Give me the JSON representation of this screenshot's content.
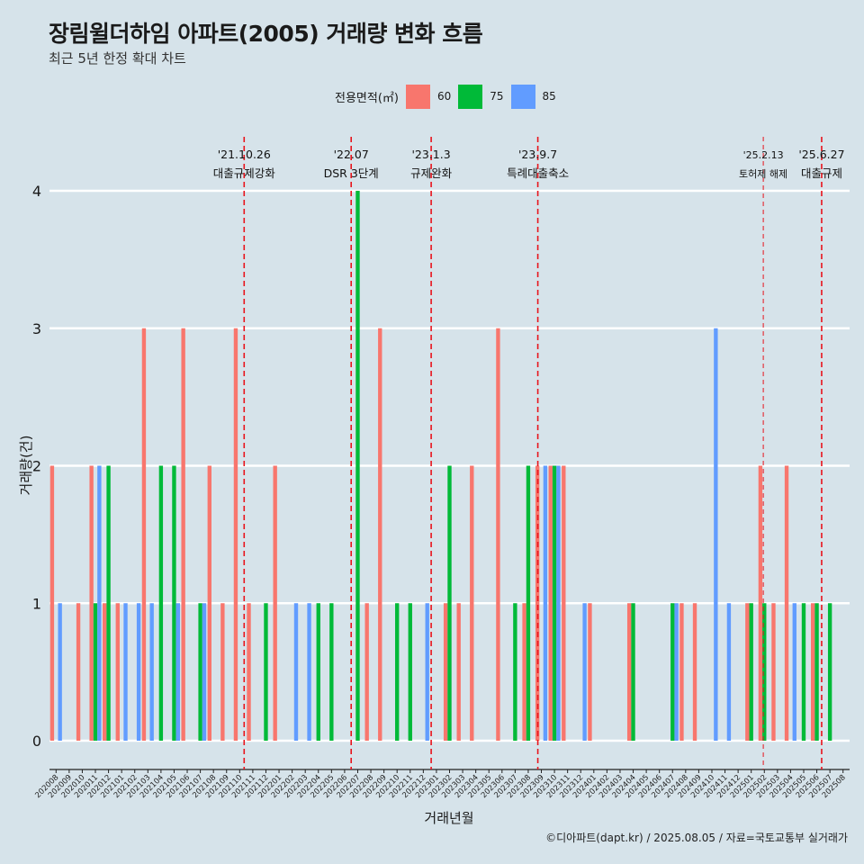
{
  "header": {
    "title": "장림윌더하임 아파트(2005) 거래량 변화 흐름",
    "subtitle": "최근 5년 한정 확대 차트"
  },
  "legend": {
    "title": "전용면적(㎡)",
    "items": [
      {
        "label": "60",
        "color": "#F8766D"
      },
      {
        "label": "75",
        "color": "#00BA38"
      },
      {
        "label": "85",
        "color": "#619CFF"
      }
    ]
  },
  "caption": "©디아파트(dapt.kr) / 2025.08.05 / 자료=국토교통부 실거래가",
  "chart_data": {
    "type": "bar",
    "xlabel": "거래년월",
    "ylabel": "거래량(건)",
    "ylim": [
      0,
      4
    ],
    "yticks": [
      0,
      1,
      2,
      3,
      4
    ],
    "grid": "horizontal",
    "legend_position": "top",
    "categories": [
      "202008",
      "202009",
      "202010",
      "202011",
      "202012",
      "202101",
      "202102",
      "202103",
      "202104",
      "202105",
      "202106",
      "202107",
      "202108",
      "202109",
      "202110",
      "202111",
      "202112",
      "202201",
      "202202",
      "202203",
      "202204",
      "202205",
      "202206",
      "202207",
      "202208",
      "202209",
      "202210",
      "202211",
      "202212",
      "202301",
      "202302",
      "202303",
      "202304",
      "202305",
      "202306",
      "202307",
      "202308",
      "202309",
      "202310",
      "202311",
      "202312",
      "202401",
      "202402",
      "202403",
      "202404",
      "202405",
      "202406",
      "202407",
      "202408",
      "202409",
      "202410",
      "202411",
      "202412",
      "202501",
      "202502",
      "202503",
      "202504",
      "202505",
      "202506",
      "202507",
      "202508"
    ],
    "series": [
      {
        "name": "60",
        "color": "#F8766D",
        "values": [
          2,
          0,
          1,
          2,
          1,
          1,
          0,
          3,
          0,
          0,
          3,
          0,
          2,
          1,
          3,
          1,
          0,
          2,
          0,
          0,
          0,
          0,
          0,
          0,
          1,
          3,
          0,
          0,
          0,
          0,
          1,
          1,
          2,
          0,
          3,
          0,
          1,
          2,
          2,
          2,
          0,
          1,
          0,
          0,
          1,
          0,
          0,
          0,
          1,
          1,
          0,
          0,
          0,
          1,
          2,
          1,
          2,
          0,
          1,
          0,
          0
        ]
      },
      {
        "name": "75",
        "color": "#00BA38",
        "values": [
          0,
          0,
          0,
          1,
          2,
          0,
          0,
          0,
          2,
          2,
          0,
          1,
          0,
          0,
          0,
          0,
          1,
          0,
          0,
          0,
          1,
          1,
          0,
          4,
          0,
          0,
          1,
          1,
          0,
          0,
          2,
          0,
          0,
          0,
          0,
          1,
          2,
          0,
          2,
          0,
          0,
          0,
          0,
          0,
          1,
          0,
          0,
          1,
          0,
          0,
          0,
          0,
          0,
          1,
          1,
          0,
          0,
          1,
          1,
          1,
          0
        ]
      },
      {
        "name": "85",
        "color": "#619CFF",
        "values": [
          1,
          0,
          0,
          2,
          0,
          1,
          1,
          1,
          0,
          1,
          0,
          1,
          0,
          0,
          0,
          0,
          0,
          0,
          1,
          1,
          0,
          0,
          0,
          0,
          0,
          0,
          0,
          0,
          1,
          0,
          0,
          0,
          0,
          0,
          0,
          0,
          0,
          2,
          2,
          0,
          1,
          0,
          0,
          0,
          0,
          0,
          0,
          1,
          0,
          0,
          3,
          1,
          0,
          0,
          0,
          0,
          1,
          0,
          0,
          0,
          0
        ]
      }
    ],
    "annotations": [
      {
        "date": "'21.10.26",
        "label": "대출규제강화",
        "month": "202110",
        "frac": 0.84,
        "style": "dashed"
      },
      {
        "date": "'22.07",
        "label": "DSR 3단계",
        "month": "202207",
        "frac": 0.0,
        "style": "dashed"
      },
      {
        "date": "'23.1.3",
        "label": "규제완화",
        "month": "202301",
        "frac": 0.1,
        "style": "dashed"
      },
      {
        "date": "'23.9.7",
        "label": "특례대출축소",
        "month": "202309",
        "frac": 0.23,
        "style": "dashed"
      },
      {
        "date": "'25.2.13",
        "label": "토허제 해제",
        "month": "202502",
        "frac": 0.42,
        "style": "dashed-thin"
      },
      {
        "date": "'25.6.27",
        "label": "대출규제",
        "month": "202506",
        "frac": 0.87,
        "style": "dashed"
      }
    ]
  }
}
